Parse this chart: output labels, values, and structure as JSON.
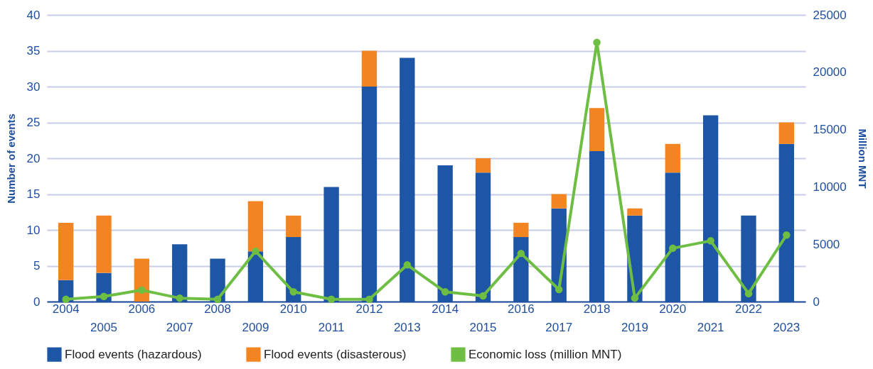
{
  "chart_data": {
    "type": "bar",
    "stacked": true,
    "categories": [
      "2004",
      "2005",
      "2006",
      "2007",
      "2008",
      "2009",
      "2010",
      "2011",
      "2012",
      "2013",
      "2014",
      "2015",
      "2016",
      "2017",
      "2018",
      "2019",
      "2020",
      "2021",
      "2022",
      "2023"
    ],
    "series": [
      {
        "name": "Flood events (hazardous)",
        "color": "#1c56a5",
        "values": [
          3,
          4,
          0,
          8,
          6,
          7,
          9,
          16,
          30,
          34,
          19,
          18,
          9,
          13,
          21,
          12,
          18,
          26,
          12,
          22
        ]
      },
      {
        "name": "Flood events (disasterous)",
        "color": "#f28522",
        "values": [
          8,
          8,
          6,
          0,
          0,
          7,
          3,
          0,
          5,
          0,
          0,
          2,
          2,
          2,
          6,
          1,
          4,
          0,
          0,
          3
        ]
      },
      {
        "name": "Economic loss (million MNT)",
        "type": "line",
        "axis": "y2",
        "color": "#6fbe44",
        "marker": "circle",
        "line_style": "solid",
        "values": [
          200,
          450,
          1000,
          300,
          200,
          4400,
          850,
          200,
          200,
          3200,
          850,
          500,
          4200,
          1050,
          22600,
          300,
          4650,
          5300,
          700,
          5800
        ]
      }
    ],
    "ylabel": "Number of events",
    "y2label": "Million MNT",
    "ylim": [
      0,
      40
    ],
    "yticks": [
      0,
      5,
      10,
      15,
      20,
      25,
      30,
      35,
      40
    ],
    "y2lim": [
      0,
      25000
    ],
    "y2ticks": [
      0,
      5000,
      10000,
      15000,
      20000,
      25000
    ],
    "grid": "y",
    "legend": "bottom"
  }
}
